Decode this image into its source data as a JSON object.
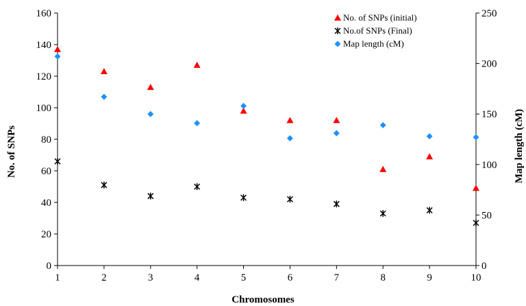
{
  "chart_data": {
    "type": "scatter",
    "xlabel": "Chromosomes",
    "ylabel": "No. of SNPs",
    "y2label": "Map length (cM)",
    "x": [
      1,
      2,
      3,
      4,
      5,
      6,
      7,
      8,
      9,
      10
    ],
    "x_ticks": [
      "1",
      "2",
      "3",
      "4",
      "5",
      "6",
      "7",
      "8",
      "9",
      "10"
    ],
    "xlim": [
      1,
      10
    ],
    "ylim": [
      0,
      160
    ],
    "y_ticks": [
      "0",
      "20",
      "40",
      "60",
      "80",
      "100",
      "120",
      "140",
      "160"
    ],
    "y2lim": [
      0,
      250
    ],
    "y2_ticks": [
      "0",
      "50",
      "100",
      "150",
      "200",
      "250"
    ],
    "grid": false,
    "legend_position": "top-right",
    "series": [
      {
        "name": "No. of SNPs (initial)",
        "axis": "left",
        "marker": "triangle",
        "color": "#ff0000",
        "values": [
          137,
          123,
          113,
          127,
          98,
          92,
          92,
          61,
          69,
          49
        ]
      },
      {
        "name": "No.of SNPs (Final)",
        "axis": "left",
        "marker": "asterisk",
        "color": "#000000",
        "values": [
          66,
          51,
          44,
          50,
          43,
          42,
          39,
          33,
          35,
          27
        ]
      },
      {
        "name": "Map length (cM)",
        "axis": "right",
        "marker": "diamond",
        "color": "#1e90ff",
        "values": [
          207,
          167,
          150,
          141,
          158,
          126,
          131,
          139,
          128,
          127
        ]
      }
    ]
  }
}
